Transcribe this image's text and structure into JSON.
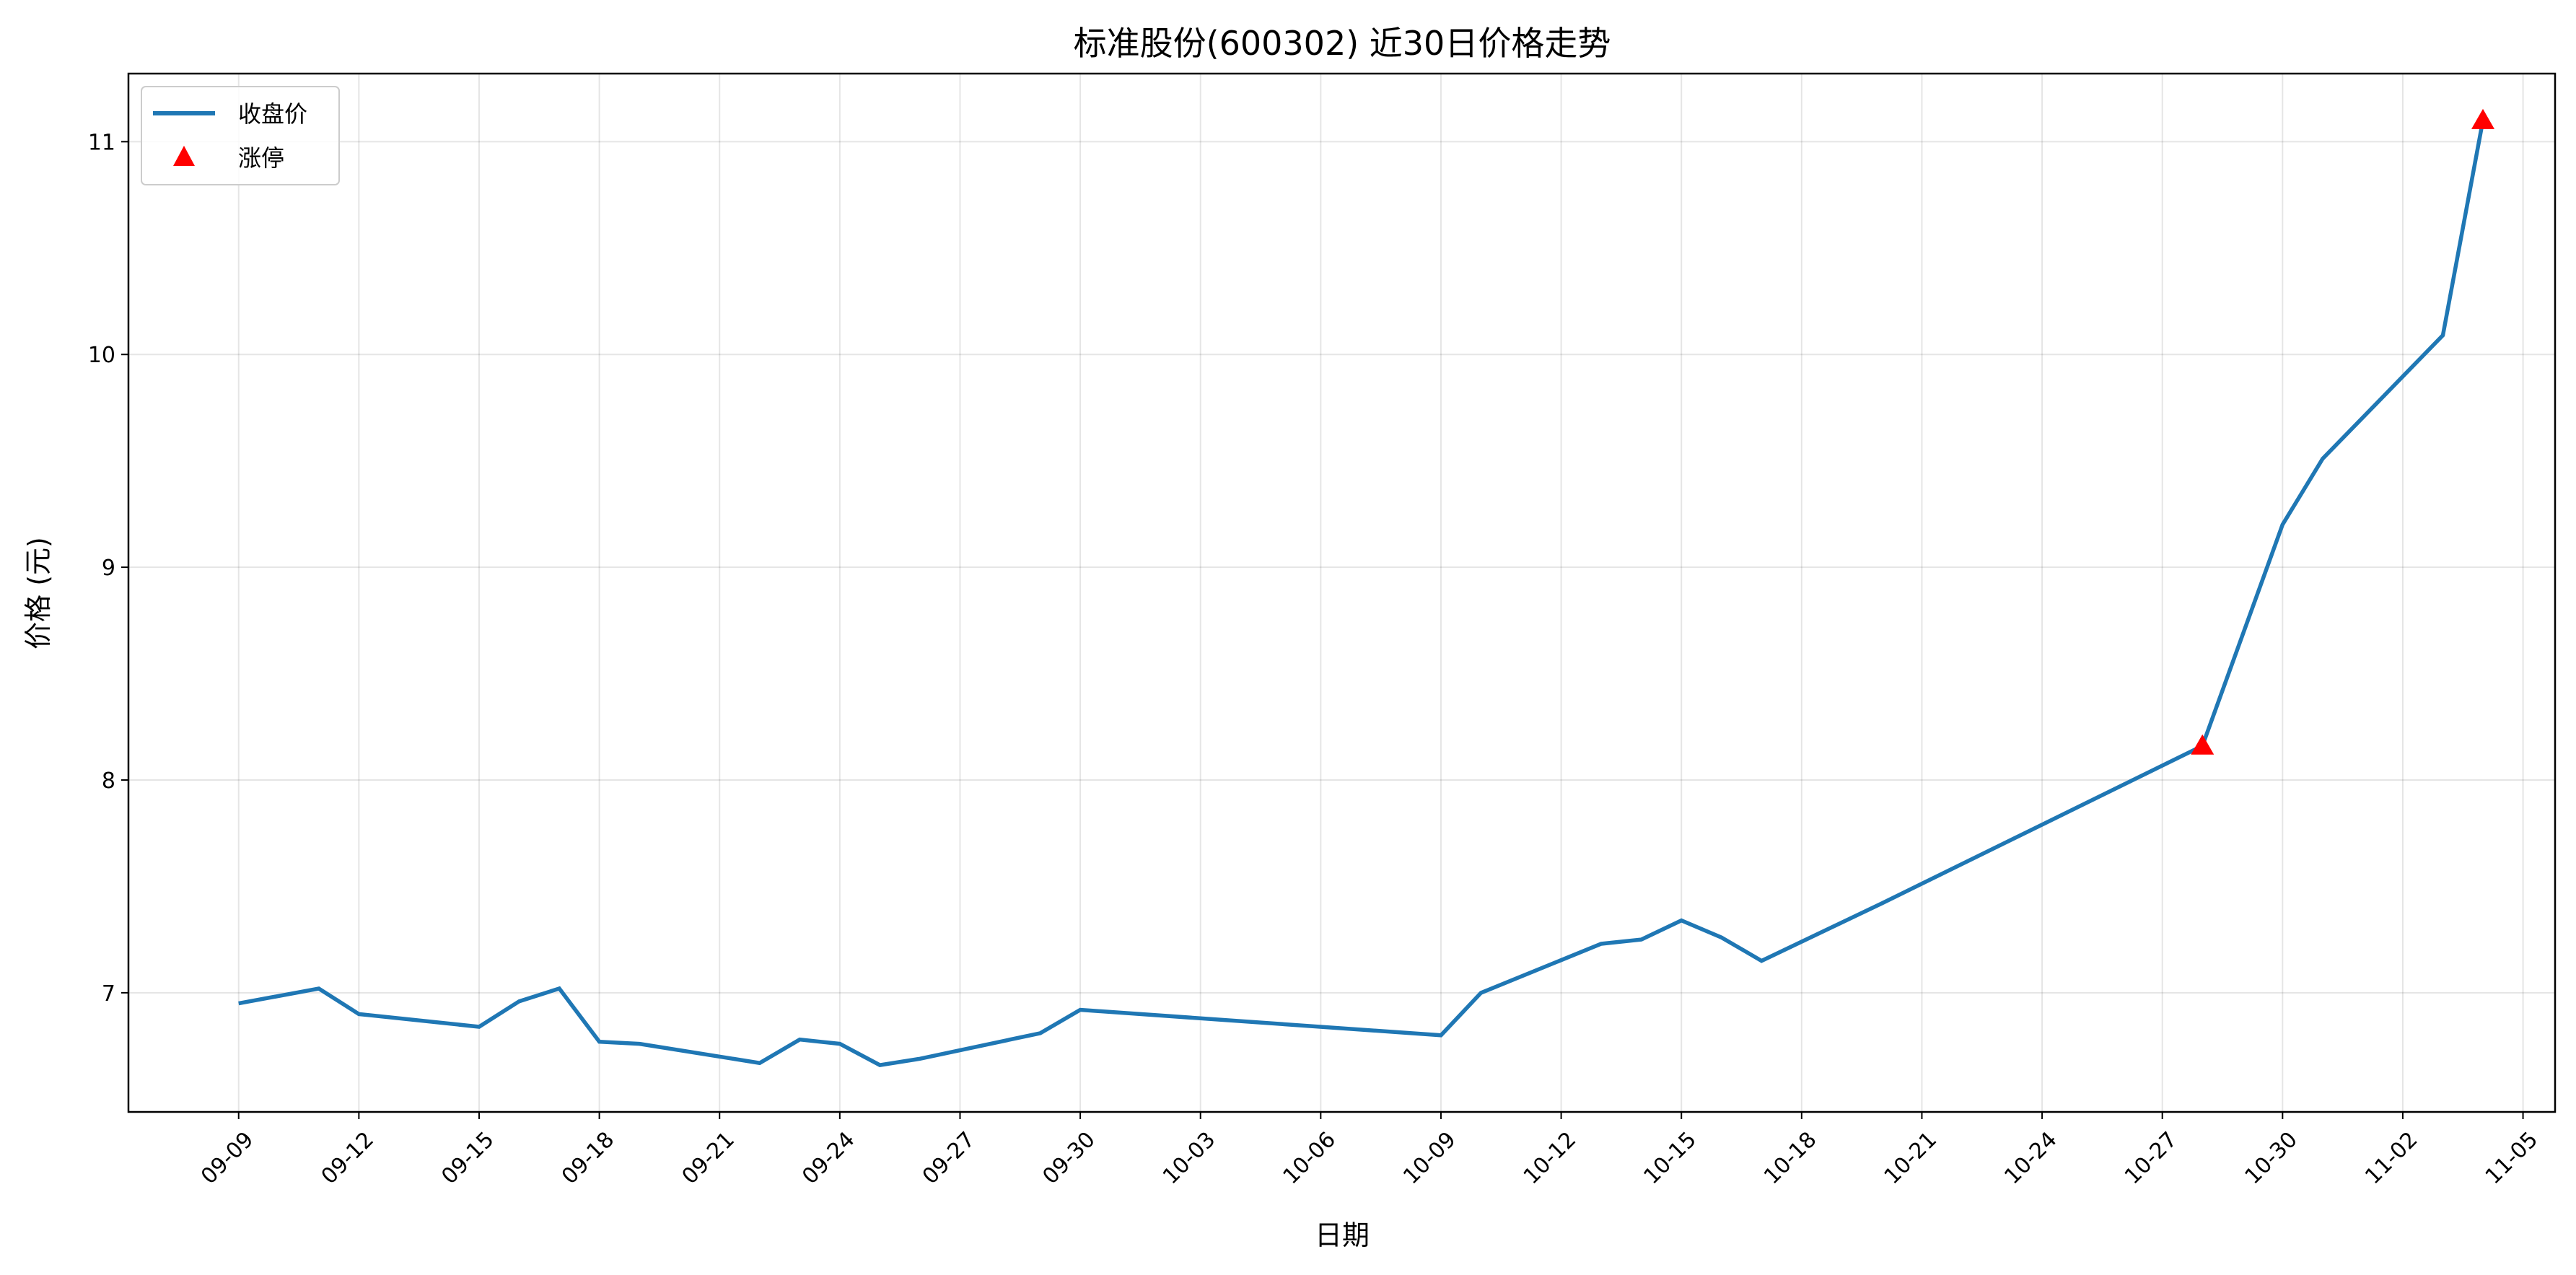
{
  "chart_data": {
    "type": "line",
    "title": "标准股份(600302) 近30日价格走势",
    "xlabel": "日期",
    "ylabel": "价格 (元)",
    "x_tick_labels": [
      "09-09",
      "09-12",
      "09-15",
      "09-18",
      "09-21",
      "09-24",
      "09-27",
      "09-30",
      "10-03",
      "10-06",
      "10-09",
      "10-12",
      "10-15",
      "10-18",
      "10-21",
      "10-24",
      "10-27",
      "10-30",
      "11-02",
      "11-05"
    ],
    "y_ticks": [
      7,
      8,
      9,
      10,
      11
    ],
    "xlim": [
      "09-06",
      "11-06"
    ],
    "ylim": [
      6.44,
      11.32
    ],
    "grid": true,
    "legend_placement": "top-left",
    "series": [
      {
        "name": "收盘价",
        "color": "#1f77b4",
        "x": [
          "09-09",
          "09-11",
          "09-12",
          "09-15",
          "09-16",
          "09-17",
          "09-18",
          "09-19",
          "09-22",
          "09-23",
          "09-24",
          "09-25",
          "09-26",
          "09-29",
          "09-30",
          "10-09",
          "10-10",
          "10-13",
          "10-14",
          "10-15",
          "10-16",
          "10-17",
          "10-20",
          "10-28",
          "10-30",
          "10-31",
          "11-03",
          "11-04"
        ],
        "y": [
          6.95,
          7.02,
          6.9,
          6.84,
          6.96,
          7.02,
          6.77,
          6.76,
          6.67,
          6.78,
          6.76,
          6.66,
          6.69,
          6.81,
          6.92,
          6.8,
          7.0,
          7.23,
          7.25,
          7.34,
          7.26,
          7.15,
          7.42,
          8.16,
          9.2,
          9.51,
          10.09,
          11.1
        ]
      },
      {
        "name": "涨停",
        "type": "scatter",
        "marker": "triangle",
        "color": "#ff0000",
        "x": [
          "10-28",
          "11-04"
        ],
        "y": [
          8.16,
          11.1
        ]
      }
    ]
  }
}
